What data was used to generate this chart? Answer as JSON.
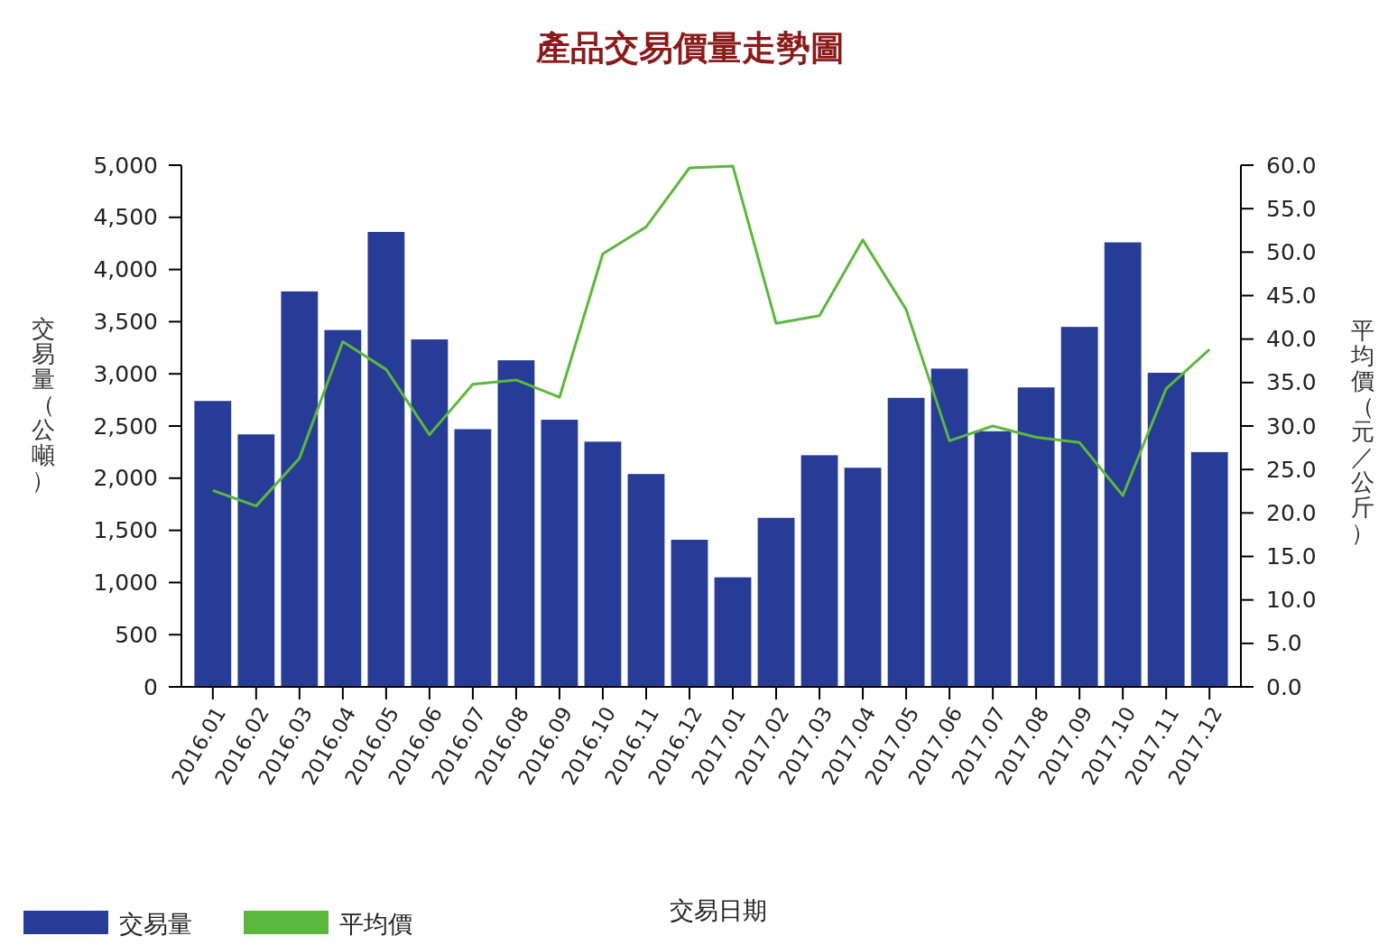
{
  "chart_data": {
    "type": "bar",
    "title": "產品交易價量走勢圖",
    "xlabel": "交易日期",
    "ylabel": "交易量（公噸）",
    "y2label": "平均價（元／公斤）",
    "categories": [
      "2016.01",
      "2016.02",
      "2016.03",
      "2016.04",
      "2016.05",
      "2016.06",
      "2016.07",
      "2016.08",
      "2016.09",
      "2016.10",
      "2016.11",
      "2016.12",
      "2017.01",
      "2017.02",
      "2017.03",
      "2017.04",
      "2017.05",
      "2017.06",
      "2017.07",
      "2017.08",
      "2017.09",
      "2017.10",
      "2017.11",
      "2017.12"
    ],
    "series": [
      {
        "name": "交易量",
        "color": "#263c96",
        "values": [
          2740,
          2420,
          3790,
          3420,
          4360,
          3330,
          2470,
          3130,
          2560,
          2350,
          2040,
          1410,
          1050,
          1620,
          2220,
          2100,
          2770,
          3050,
          2450,
          2870,
          3450,
          4260,
          3010,
          2250
        ]
      },
      {
        "name": "平均價",
        "type": "line",
        "axis": "y2",
        "color": "#5cb83c",
        "values": [
          22.6,
          20.8,
          26.3,
          39.7,
          36.5,
          29.0,
          34.8,
          35.3,
          33.3,
          49.8,
          52.9,
          59.7,
          59.9,
          41.8,
          42.7,
          51.4,
          43.4,
          28.3,
          30.0,
          28.7,
          28.1,
          22.0,
          34.3,
          38.8
        ]
      }
    ],
    "ylim": [
      0,
      5000
    ],
    "yticks": [
      {
        "value": 0,
        "label": "0"
      },
      {
        "value": 500,
        "label": "500"
      },
      {
        "value": 1000,
        "label": "1,000"
      },
      {
        "value": 1500,
        "label": "1,500"
      },
      {
        "value": 2000,
        "label": "2,000"
      },
      {
        "value": 2500,
        "label": "2,500"
      },
      {
        "value": 3000,
        "label": "3,000"
      },
      {
        "value": 3500,
        "label": "3,500"
      },
      {
        "value": 4000,
        "label": "4,000"
      },
      {
        "value": 4500,
        "label": "4,500"
      },
      {
        "value": 5000,
        "label": "5,000"
      }
    ],
    "y2lim": [
      0,
      60
    ],
    "y2ticks": [
      {
        "value": 0,
        "label": "0.0"
      },
      {
        "value": 5,
        "label": "5.0"
      },
      {
        "value": 10,
        "label": "10.0"
      },
      {
        "value": 15,
        "label": "15.0"
      },
      {
        "value": 20,
        "label": "20.0"
      },
      {
        "value": 25,
        "label": "25.0"
      },
      {
        "value": 30,
        "label": "30.0"
      },
      {
        "value": 35,
        "label": "35.0"
      },
      {
        "value": 40,
        "label": "40.0"
      },
      {
        "value": 45,
        "label": "45.0"
      },
      {
        "value": 50,
        "label": "50.0"
      },
      {
        "value": 55,
        "label": "55.0"
      },
      {
        "value": 60,
        "label": "60.0"
      }
    ],
    "legend": "bottom left",
    "marker": "none",
    "line_style": "solid",
    "grid": false
  }
}
